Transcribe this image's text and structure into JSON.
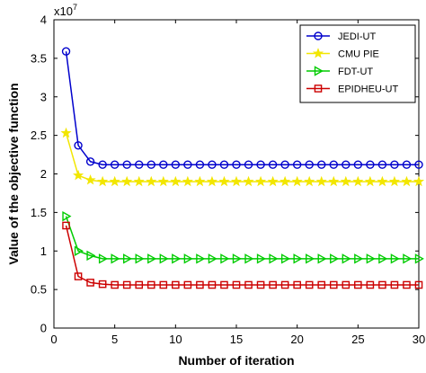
{
  "chart_data": {
    "type": "line",
    "xlabel": "Number of iteration",
    "ylabel": "Value of the objective function",
    "xlim": [
      0,
      30
    ],
    "ylim": [
      0,
      4
    ],
    "x_ticks": [
      0,
      5,
      10,
      15,
      20,
      25,
      30
    ],
    "y_ticks": [
      0,
      0.5,
      1,
      1.5,
      2,
      2.5,
      3,
      3.5,
      4
    ],
    "y_exponent_base": "x10",
    "y_exponent_power": "7",
    "grid": false,
    "legend_position": "top-right",
    "x": [
      1,
      2,
      3,
      4,
      5,
      6,
      7,
      8,
      9,
      10,
      11,
      12,
      13,
      14,
      15,
      16,
      17,
      18,
      19,
      20,
      21,
      22,
      23,
      24,
      25,
      26,
      27,
      28,
      29,
      30
    ],
    "series": [
      {
        "name": "JEDI-UT",
        "color": "#0000cc",
        "marker": "circle",
        "values": [
          3.59,
          2.37,
          2.16,
          2.12,
          2.12,
          2.12,
          2.12,
          2.12,
          2.12,
          2.12,
          2.12,
          2.12,
          2.12,
          2.12,
          2.12,
          2.12,
          2.12,
          2.12,
          2.12,
          2.12,
          2.12,
          2.12,
          2.12,
          2.12,
          2.12,
          2.12,
          2.12,
          2.12,
          2.12,
          2.12
        ]
      },
      {
        "name": "CMU PIE",
        "color": "#f2e600",
        "marker": "star",
        "values": [
          2.53,
          1.98,
          1.92,
          1.9,
          1.9,
          1.9,
          1.9,
          1.9,
          1.9,
          1.9,
          1.9,
          1.9,
          1.9,
          1.9,
          1.9,
          1.9,
          1.9,
          1.9,
          1.9,
          1.9,
          1.9,
          1.9,
          1.9,
          1.9,
          1.9,
          1.9,
          1.9,
          1.9,
          1.9,
          1.9
        ]
      },
      {
        "name": "FDT-UT",
        "color": "#00cc00",
        "marker": "triangle-right",
        "values": [
          1.45,
          1.0,
          0.94,
          0.9,
          0.9,
          0.9,
          0.9,
          0.9,
          0.9,
          0.9,
          0.9,
          0.9,
          0.9,
          0.9,
          0.9,
          0.9,
          0.9,
          0.9,
          0.9,
          0.9,
          0.9,
          0.9,
          0.9,
          0.9,
          0.9,
          0.9,
          0.9,
          0.9,
          0.9,
          0.9
        ]
      },
      {
        "name": "EPIDHEU-UT",
        "color": "#cc0000",
        "marker": "square",
        "values": [
          1.33,
          0.67,
          0.59,
          0.57,
          0.56,
          0.56,
          0.56,
          0.56,
          0.56,
          0.56,
          0.56,
          0.56,
          0.56,
          0.56,
          0.56,
          0.56,
          0.56,
          0.56,
          0.56,
          0.56,
          0.56,
          0.56,
          0.56,
          0.56,
          0.56,
          0.56,
          0.56,
          0.56,
          0.56,
          0.56
        ]
      }
    ]
  }
}
